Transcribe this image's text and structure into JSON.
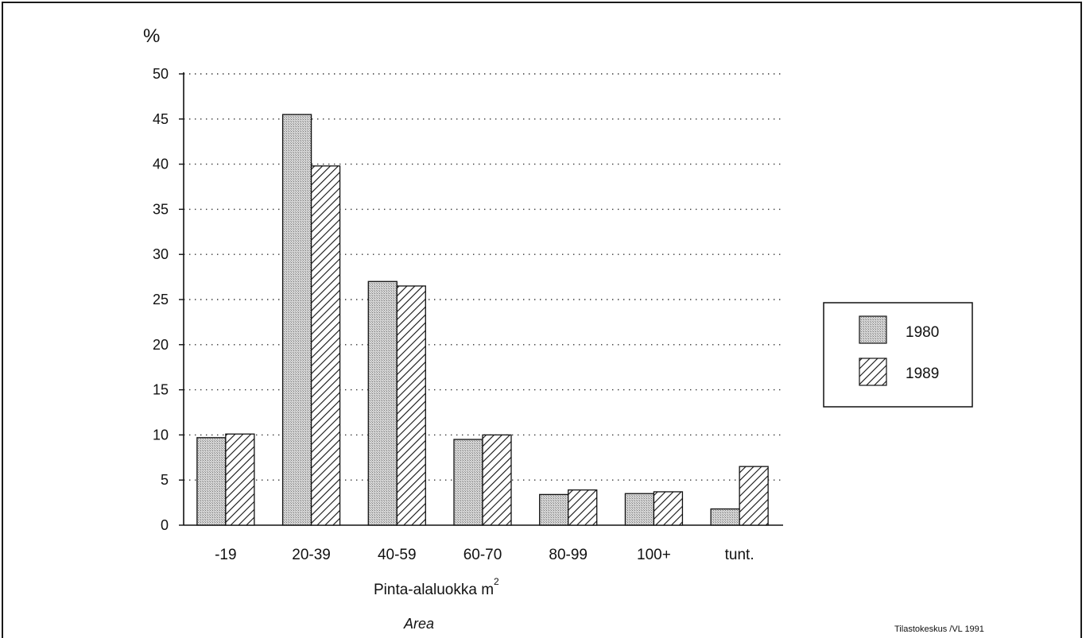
{
  "chart_data": {
    "type": "bar",
    "ylabel": "%",
    "xlabel": "Pinta-alaluokka m",
    "xlabel_superscript": "2",
    "xlabel_sub": "Area",
    "ylim": [
      0,
      50
    ],
    "yticks": [
      "0",
      "5",
      "10",
      "15",
      "20",
      "25",
      "30",
      "35",
      "40",
      "45",
      "50"
    ],
    "grid": "horizontal dotted",
    "legend_position": "right",
    "categories": [
      "-19",
      "20-39",
      "40-59",
      "60-70",
      "80-99",
      "100+",
      "tunt."
    ],
    "series": [
      {
        "name": "1980",
        "values": [
          9.7,
          45.5,
          27.0,
          9.5,
          3.4,
          3.5,
          1.8
        ],
        "pattern": "dotted-gray"
      },
      {
        "name": "1989",
        "values": [
          10.1,
          39.8,
          26.5,
          10.0,
          3.9,
          3.7,
          6.5
        ],
        "pattern": "diagonal-hatch"
      }
    ],
    "source": "Tilastokeskus /VL 1991"
  }
}
